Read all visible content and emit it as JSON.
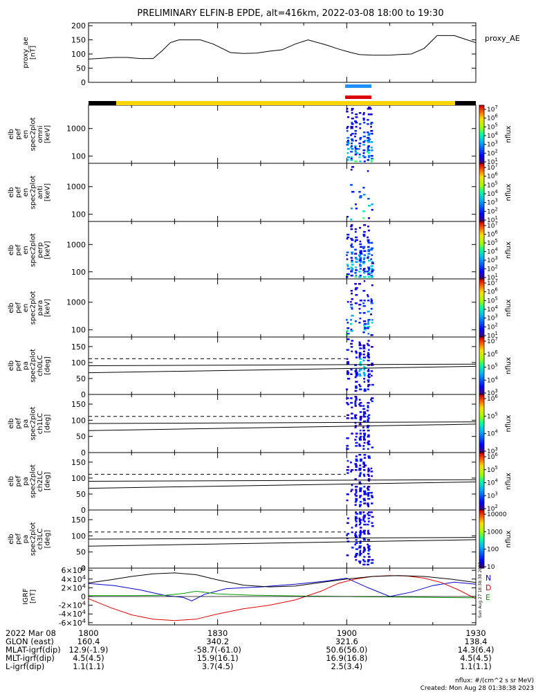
{
  "title": "PRELIMINARY ELFIN-B EPDE, alt=416km, 2022-03-08 18:00 to 19:30",
  "colors": {
    "sci_zone": "#ffd700",
    "no_data": "#000000",
    "ifgr_bar": "#1e90ff",
    "fgr_bar": "#dc0000",
    "bx": "#0000cc",
    "by": "#009900",
    "bz": "#dd0000",
    "bt": "#000000"
  },
  "chart_data": [
    {
      "id": "proxy_ae",
      "type": "line",
      "ylabel": "proxy_ae\n[nT]",
      "series_label": "proxy_AE",
      "ylim": [
        0,
        210
      ],
      "yticks": [
        0,
        50,
        100,
        150,
        200
      ],
      "x_minutes": [
        0,
        3,
        6,
        9,
        12,
        15,
        17,
        19,
        21,
        23,
        26,
        29,
        33,
        36,
        39,
        42,
        45,
        48,
        51,
        55,
        58,
        61,
        63,
        66,
        68,
        70,
        72,
        75,
        78,
        80,
        81,
        83,
        85,
        86,
        88,
        90
      ],
      "values": [
        82,
        85,
        88,
        88,
        84,
        84,
        110,
        140,
        150,
        150,
        150,
        135,
        105,
        102,
        103,
        110,
        115,
        135,
        150,
        133,
        118,
        105,
        98,
        96,
        96,
        96,
        98,
        100,
        120,
        150,
        165,
        165,
        165,
        160,
        150,
        140
      ]
    },
    {
      "id": "omni",
      "type": "heatmap",
      "ylabel": "elb\npef\nen\nspec2plot\nomni\n[keV]",
      "yscale": "log",
      "ylim": [
        55,
        7000
      ],
      "yticks": [
        100,
        1000
      ],
      "ytick_labels": [
        "100",
        "1000"
      ],
      "cbar_label": "nflux",
      "cbar_ticks": [
        "10^7",
        "10^6",
        "10^5",
        "10^4",
        "10^3",
        "10^2",
        "10^1"
      ]
    },
    {
      "id": "anti",
      "type": "heatmap",
      "ylabel": "elb\npef\nen\nspec2plot\nanti\n[keV]",
      "yscale": "log",
      "ylim": [
        55,
        7000
      ],
      "yticks": [
        100,
        1000
      ],
      "ytick_labels": [
        "100",
        "1000"
      ],
      "cbar_label": "nflux",
      "cbar_ticks": [
        "10^7",
        "10^6",
        "10^5",
        "10^4",
        "10^3",
        "10^2",
        "10^1"
      ]
    },
    {
      "id": "perp",
      "type": "heatmap",
      "ylabel": "elb\npef\nen\nspec2plot\nperp\n[keV]",
      "yscale": "log",
      "ylim": [
        55,
        7000
      ],
      "yticks": [
        100,
        1000
      ],
      "ytick_labels": [
        "100",
        "1000"
      ],
      "cbar_label": "nflux",
      "cbar_ticks": [
        "10^7",
        "10^6",
        "10^5",
        "10^4",
        "10^3",
        "10^2",
        "10^1"
      ]
    },
    {
      "id": "para",
      "type": "heatmap",
      "ylabel": "elb\npef\nen\nspec2plot\npara\n[keV]",
      "yscale": "log",
      "ylim": [
        55,
        7000
      ],
      "yticks": [
        100,
        1000
      ],
      "ytick_labels": [
        "100",
        "1000"
      ],
      "cbar_label": "nflux",
      "cbar_ticks": [
        "10^7",
        "10^6",
        "10^5",
        "10^4",
        "10^3",
        "10^2",
        "10^1"
      ]
    },
    {
      "id": "ch0LC",
      "type": "heatmap",
      "ylabel": "elb\npef\npa\nspec2plot\nch0LC\n[deg]",
      "ylim": [
        0,
        180
      ],
      "yticks": [
        0,
        50,
        100,
        150
      ],
      "cbar_label": "nflux",
      "cbar_ticks": [
        "10^7",
        "10^6",
        "10^5",
        "10^4",
        "10^3"
      ]
    },
    {
      "id": "ch1LC",
      "type": "heatmap",
      "ylabel": "elb\npef\npa\nspec2plot\nch1LC\n[deg]",
      "ylim": [
        0,
        180
      ],
      "yticks": [
        0,
        50,
        100,
        150
      ],
      "cbar_label": "nflux",
      "cbar_ticks": [
        "10^6",
        "10^5",
        "10^4",
        "10^3"
      ]
    },
    {
      "id": "ch2LC",
      "type": "heatmap",
      "ylabel": "elb\npef\npa\nspec2plot\nch2LC\n[deg]",
      "ylim": [
        0,
        180
      ],
      "yticks": [
        0,
        50,
        100,
        150
      ],
      "cbar_label": "nflux",
      "cbar_ticks": [
        "10^6",
        "10^5",
        "10^4",
        "10^3",
        "10^2"
      ]
    },
    {
      "id": "ch3LC",
      "type": "heatmap",
      "ylabel": "elb\npef\npa\nspec2plot\nch3LC\n[deg]",
      "ylim": [
        0,
        180
      ],
      "yticks": [
        0,
        50,
        100,
        150
      ],
      "cbar_label": "nflux",
      "cbar_ticks": [
        "10000",
        "1000",
        "100",
        "10"
      ]
    },
    {
      "id": "igrf",
      "type": "line",
      "ylabel": "IGRF\n[nT]",
      "ylim": [
        -65000,
        65000
      ],
      "yticks": [
        -60000,
        -40000,
        -20000,
        0,
        20000,
        40000,
        60000
      ],
      "ytick_labels": [
        "-6×10^4",
        "-4×10^4",
        "-2×10^4",
        "0",
        "2×10^4",
        "4×10^4",
        "6×10^4"
      ],
      "legend": [
        "N",
        "D",
        "E"
      ],
      "series": [
        {
          "name": "N",
          "color": "#0000cc",
          "x": [
            0,
            6,
            12,
            18,
            22,
            24,
            27,
            32,
            40,
            48,
            55,
            60,
            65,
            70,
            75,
            80,
            85,
            90
          ],
          "values": [
            30000,
            25000,
            15000,
            2000,
            -2000,
            -10000,
            5000,
            18000,
            22000,
            28000,
            35000,
            42000,
            20000,
            0,
            10000,
            25000,
            33000,
            28000
          ]
        },
        {
          "name": "D",
          "color": "#dd0000",
          "x": [
            0,
            5,
            10,
            15,
            20,
            25,
            30,
            36,
            42,
            48,
            54,
            58,
            62,
            66,
            70,
            74,
            78,
            82,
            86,
            90
          ],
          "values": [
            -5000,
            -25000,
            -42000,
            -52000,
            -55000,
            -52000,
            -40000,
            -28000,
            -20000,
            -8000,
            12000,
            30000,
            40000,
            46000,
            48000,
            47000,
            42000,
            32000,
            15000,
            -5000
          ]
        },
        {
          "name": "E",
          "color": "#009900",
          "x": [
            0,
            10,
            18,
            22,
            25,
            30,
            38,
            50,
            60,
            70,
            80,
            90
          ],
          "values": [
            2000,
            2000,
            3000,
            7000,
            12000,
            6000,
            3000,
            1000,
            0,
            -1000,
            -2000,
            -3000
          ]
        },
        {
          "name": "",
          "color": "#000000",
          "x": [
            0,
            5,
            10,
            15,
            20,
            25,
            30,
            36,
            42,
            48,
            54,
            60,
            66,
            72,
            78,
            84,
            90
          ],
          "values": [
            31000,
            38000,
            46000,
            52000,
            54000,
            50000,
            38000,
            26000,
            22000,
            24000,
            32000,
            40000,
            46000,
            48000,
            46000,
            40000,
            32000
          ]
        }
      ]
    }
  ],
  "time_ticks": [
    "1800",
    "1830",
    "1900",
    "1930"
  ],
  "footer_rows": [
    {
      "label": "2022 Mar 08",
      "values": [
        "1800",
        "1830",
        "1900",
        "1930"
      ]
    },
    {
      "label": "GLON (east)",
      "values": [
        "160.4",
        "340.2",
        "321.6",
        "138.4"
      ]
    },
    {
      "label": "MLAT-igrf(dip)",
      "values": [
        "12.9(-1.9)",
        "-58.7(-61.0)",
        "50.6(56.0)",
        "14.3(6.4)"
      ]
    },
    {
      "label": "MLT-igrf(dip)",
      "values": [
        "4.5(4.5)",
        "15.9(16.1)",
        "16.9(16.8)",
        "4.5(4.5)"
      ]
    },
    {
      "label": "L-igrf(dip)",
      "values": [
        "1.1(1.1)",
        "3.7(4.5)",
        "2.5(3.4)",
        "1.1(1.1)"
      ]
    }
  ],
  "units_note": "nflux: #/(cm^2 s sr MeV)",
  "created": "Created: Mon Aug 28 01:38:38 2023",
  "side_stamp": "Sun Aug 27 18:38:38 2023"
}
